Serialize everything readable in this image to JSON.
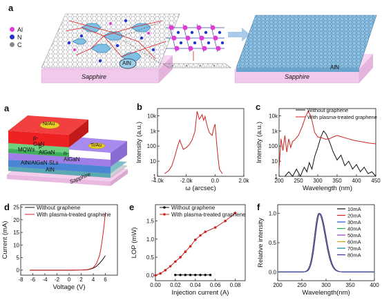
{
  "figure": {
    "top": {
      "label": "a",
      "legend": [
        {
          "text": "Al",
          "color": "#e23ad6"
        },
        {
          "text": "N",
          "color": "#2233cc"
        },
        {
          "text": "C",
          "color": "#888888"
        }
      ],
      "substrate_left": "Sapphire",
      "substrate_right": "Sapphire",
      "island_label": "AlN",
      "film_label": "AlN"
    },
    "device": {
      "label": "a",
      "layers": [
        "p-GaN",
        "p-AlGaN",
        "MQWs",
        "n-AlGaN",
        "AlN/AlGaN SLs",
        "AlN",
        "Sapphire"
      ],
      "contacts": [
        "Ni/Au",
        "Ti/Au"
      ]
    }
  },
  "chart_data": [
    {
      "id": "b",
      "type": "line",
      "panel_label": "b",
      "xlabel": "ω (arcsec)",
      "ylabel": "Intensity (a.u.)",
      "xlim": [
        -4000,
        2000
      ],
      "ylim_log": [
        1,
        30000
      ],
      "xticks": [
        "-4.0k",
        "-2.0k",
        "0.0",
        "2.0k"
      ],
      "yticks": [
        "1",
        "10",
        "100",
        "1k",
        "10k"
      ],
      "color": "#cc2222",
      "x": [
        -3500,
        -3200,
        -3000,
        -2800,
        -2600,
        -2450,
        -2350,
        -2200,
        -2000,
        -1800,
        -1600,
        -1400,
        -1250,
        -1100,
        -1000,
        -900,
        -800,
        -700,
        -600,
        -500,
        -400,
        -300,
        -200,
        -100,
        0,
        100,
        200,
        300,
        500
      ],
      "y": [
        1.5,
        2.5,
        5,
        20,
        100,
        250,
        130,
        60,
        80,
        120,
        250,
        900,
        20000,
        6000,
        8000,
        12000,
        5000,
        9000,
        3500,
        1500,
        800,
        600,
        500,
        1500,
        2800,
        200,
        20,
        3,
        1.5
      ]
    },
    {
      "id": "c",
      "type": "line",
      "panel_label": "c",
      "xlabel": "Wavelength (nm)",
      "ylabel": "Intensity (a.u.)",
      "xlim": [
        200,
        450
      ],
      "ylim_log": [
        1,
        30000
      ],
      "xticks": [
        "200",
        "250",
        "300",
        "350",
        "400",
        "450"
      ],
      "yticks": [
        "1",
        "10",
        "100",
        "1k",
        "10k"
      ],
      "series": [
        {
          "name": "Without graphene",
          "color": "#111111",
          "x": [
            215,
            225,
            235,
            245,
            255,
            265,
            272,
            278,
            285,
            292,
            300,
            308,
            315,
            322,
            330,
            340,
            350,
            360,
            370,
            380,
            390,
            400,
            410,
            420,
            430,
            440,
            450
          ],
          "y": [
            1,
            2,
            1,
            3,
            1,
            4,
            2,
            8,
            3,
            20,
            80,
            400,
            1000,
            600,
            200,
            40,
            12,
            25,
            5,
            10,
            3,
            6,
            2,
            4,
            1.5,
            2,
            1
          ]
        },
        {
          "name": "With plasma-treated graphene",
          "color": "#cc2222",
          "x": [
            200,
            205,
            210,
            215,
            220,
            225,
            230,
            235,
            240,
            250,
            260,
            268,
            275,
            280,
            285,
            292,
            300,
            310,
            320,
            330,
            340,
            350,
            360,
            370,
            380,
            390,
            400,
            410,
            420,
            430,
            440,
            450
          ],
          "y": [
            3,
            300,
            50,
            500,
            40,
            300,
            80,
            200,
            250,
            500,
            2000,
            8000,
            20000,
            12000,
            5000,
            800,
            400,
            350,
            280,
            300,
            400,
            500,
            420,
            350,
            300,
            250,
            220,
            200,
            180,
            160,
            150,
            140
          ]
        }
      ]
    },
    {
      "id": "d",
      "type": "line",
      "panel_label": "d",
      "xlabel": "Voltage (V)",
      "ylabel": "Current (mA)",
      "xlim": [
        -8,
        8
      ],
      "ylim": [
        -2,
        26
      ],
      "xticks": [
        "-8",
        "-6",
        "-4",
        "-2",
        "0",
        "2",
        "4",
        "6"
      ],
      "yticks": [
        "0",
        "5",
        "10",
        "15",
        "20",
        "25"
      ],
      "series": [
        {
          "name": "Without graphene",
          "color": "#111111",
          "x": [
            -6.5,
            -4,
            -2,
            0,
            2,
            3,
            3.5,
            4,
            4.5,
            5,
            5.5,
            6
          ],
          "y": [
            0,
            0,
            0,
            0,
            0.05,
            0.15,
            0.4,
            0.8,
            1.5,
            2.6,
            4,
            5.8
          ]
        },
        {
          "name": "With plasma-treated graphene",
          "color": "#cc2222",
          "x": [
            -6.5,
            -4,
            -2,
            0,
            2,
            3,
            3.5,
            4,
            4.5,
            5,
            5.3,
            5.6,
            5.8,
            6
          ],
          "y": [
            0,
            0,
            0,
            0,
            0.05,
            0.2,
            0.5,
            1,
            2.5,
            5.5,
            9,
            14,
            18,
            23
          ]
        }
      ]
    },
    {
      "id": "e",
      "type": "line",
      "panel_label": "e",
      "xlabel": "Injection current (A)",
      "ylabel": "LOP (mW)",
      "xlim": [
        0,
        0.09
      ],
      "ylim": [
        -0.15,
        1.95
      ],
      "xticks": [
        "0.00",
        "0.02",
        "0.04",
        "0.06",
        "0.08"
      ],
      "yticks": [
        "0.0",
        "0.5",
        "1.0",
        "1.5"
      ],
      "series": [
        {
          "name": "Without graphene",
          "color": "#111111",
          "x": [
            0.02,
            0.025,
            0.03,
            0.035,
            0.04,
            0.045,
            0.05,
            0.055
          ],
          "y": [
            0.01,
            0.01,
            0.01,
            0.01,
            0.01,
            0.01,
            0.01,
            0.01
          ]
        },
        {
          "name": "With plasma-treated graphene",
          "color": "#cc2222",
          "x": [
            0.0,
            0.005,
            0.01,
            0.015,
            0.02,
            0.025,
            0.03,
            0.035,
            0.04,
            0.045,
            0.05,
            0.06,
            0.07,
            0.08
          ],
          "y": [
            0.0,
            0.05,
            0.14,
            0.25,
            0.38,
            0.5,
            0.65,
            0.8,
            0.98,
            1.1,
            1.2,
            1.32,
            1.5,
            1.72
          ]
        }
      ]
    },
    {
      "id": "f",
      "type": "line",
      "panel_label": "f",
      "xlabel": "Wavelength(nm)",
      "ylabel": "Relative intensity",
      "xlim": [
        200,
        400
      ],
      "ylim": [
        -0.15,
        1.15
      ],
      "xticks": [
        "200",
        "250",
        "300",
        "350",
        "400"
      ],
      "yticks": [
        "0.0",
        "0.5",
        "1.0"
      ],
      "peak_center": 285,
      "series": [
        {
          "name": "10mA",
          "color": "#111111"
        },
        {
          "name": "20mA",
          "color": "#dd2222"
        },
        {
          "name": "30mA",
          "color": "#2255dd"
        },
        {
          "name": "40mA",
          "color": "#22aa44"
        },
        {
          "name": "50mA",
          "color": "#9933cc"
        },
        {
          "name": "60mA",
          "color": "#d4a017"
        },
        {
          "name": "70mA",
          "color": "#008888"
        },
        {
          "name": "80mA",
          "color": "#3333aa"
        }
      ]
    }
  ]
}
